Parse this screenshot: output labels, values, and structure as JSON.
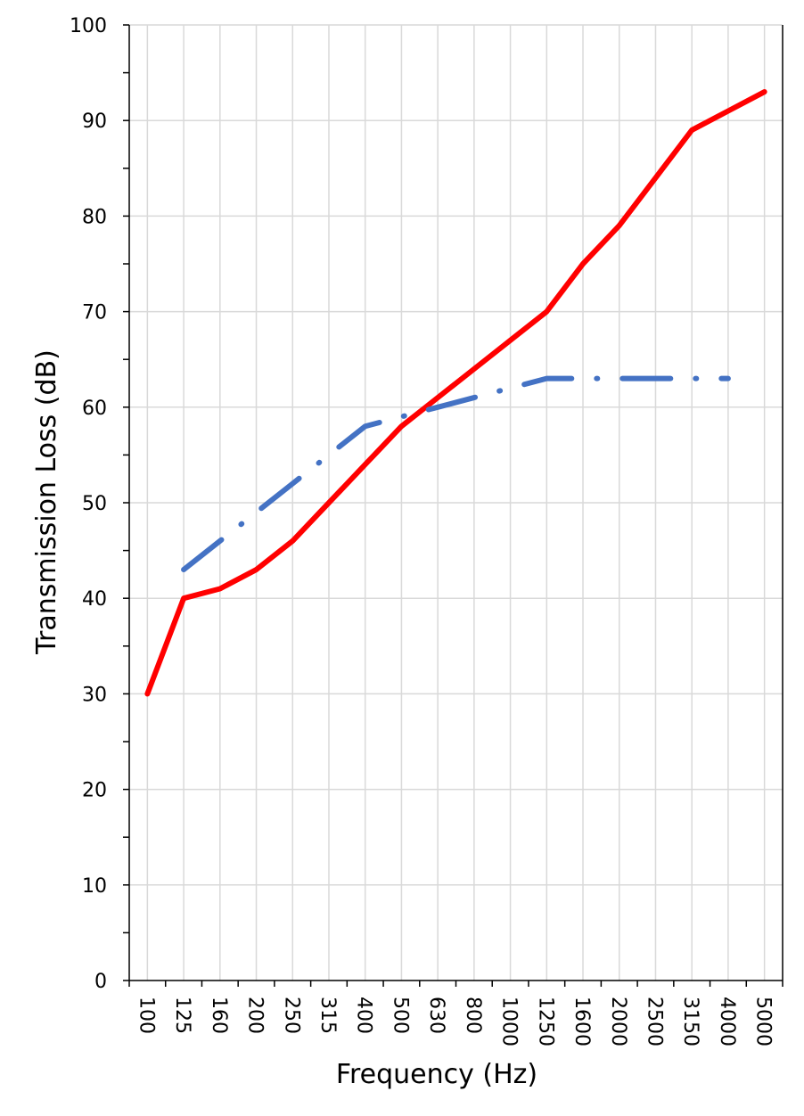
{
  "chart_data": {
    "type": "line",
    "xlabel": "Frequency (Hz)",
    "ylabel": "Transmission Loss (dB)",
    "categories": [
      "100",
      "125",
      "160",
      "200",
      "250",
      "315",
      "400",
      "500",
      "630",
      "800",
      "1000",
      "1250",
      "1600",
      "2000",
      "2500",
      "3150",
      "4000",
      "5000"
    ],
    "ylim": [
      0,
      100
    ],
    "yticks": [
      0,
      10,
      20,
      30,
      40,
      50,
      60,
      70,
      80,
      90,
      100
    ],
    "grid": true,
    "series": [
      {
        "color": "#ff0000",
        "style": "solid",
        "values": [
          30,
          40,
          41,
          43,
          46,
          50,
          54,
          58,
          61,
          64,
          67,
          70,
          75,
          79,
          84,
          89,
          91,
          93
        ]
      },
      {
        "color": "#4472c4",
        "style": "dash-dot",
        "values": [
          null,
          43,
          46,
          49,
          52,
          55,
          58,
          59,
          60,
          61,
          62,
          63,
          63,
          63,
          63,
          63,
          63,
          null
        ]
      }
    ]
  }
}
